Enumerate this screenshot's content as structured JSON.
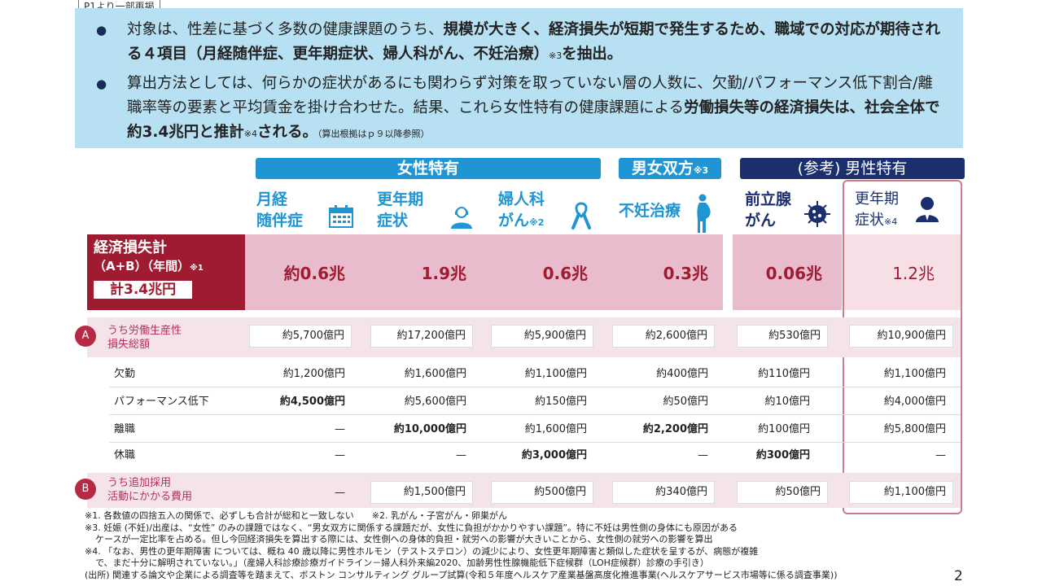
{
  "tag": "P1より一部再掲",
  "summary": {
    "b1_pre": "対象は、性差に基づく多数の健康課題のうち、",
    "b1_bold1": "規模が大きく、経済損失が短期で発生するため、",
    "b1_bold2": "職域での対応が期待される４項目（月経随伴症、更年期症状、婦人科がん、不妊治療）",
    "b1_sup": "※3",
    "b1_end": "を抽出。",
    "b2_pre": "算出方法としては、何らかの症状があるにも関わらず対策を取っていない層の人数に、欠勤/パフォーマンス低下割合/離職率等の要素と平均賃金を掛け合わせた。結果、これら女性特有の健康課題による",
    "b2_bold1": "労働損失等の経済損失は、社会全体で約3.4兆円と推計",
    "b2_sup": "※4",
    "b2_bold2": "される。",
    "b2_small": "（算出根拠はｐ９以降参照）",
    "bullet_glyph": "●"
  },
  "groups": {
    "women": "女性特有",
    "both": "男女双方",
    "both_sup": "※3",
    "men": "(参考) 男性特有"
  },
  "columns": [
    {
      "line1": "月経",
      "line2": "随伴症",
      "sup": "",
      "icon": "calendar-icon"
    },
    {
      "line1": "更年期",
      "line2": "症状",
      "sup": "",
      "icon": "woman-icon"
    },
    {
      "line1": "婦人科",
      "line2": "がん",
      "sup": "※2",
      "icon": "ribbon-icon"
    },
    {
      "line1": "不妊治療",
      "line2": "",
      "sup": "",
      "icon": "pregnant-icon"
    },
    {
      "line1": "前立腺",
      "line2": "がん",
      "sup": "",
      "icon": "virus-icon"
    },
    {
      "line1": "更年期",
      "line2": "症状",
      "sup": "※4",
      "icon": "man-icon"
    }
  ],
  "economic": {
    "label1": "経済損失計",
    "label2": "（A+B）（年間）",
    "label2_sup": "※1",
    "total": "計3.4兆円",
    "values": [
      "約0.6兆",
      "1.9兆",
      "0.6兆",
      "0.3兆",
      "0.06兆",
      "1.2兆"
    ]
  },
  "rowA": {
    "badge": "A",
    "label1": "うち労働生産性",
    "label2": "損失総額",
    "values": [
      "約5,700億円",
      "約17,200億円",
      "約5,900億円",
      "約2,600億円",
      "約530億円",
      "約10,900億円"
    ]
  },
  "subrows": [
    {
      "label": "欠勤",
      "values": [
        "約1,200億円",
        "約1,600億円",
        "約1,100億円",
        "約400億円",
        "約110億円",
        "約1,100億円"
      ],
      "bold": [
        false,
        false,
        false,
        false,
        false,
        false
      ]
    },
    {
      "label": "パフォーマンス低下",
      "values": [
        "約4,500億円",
        "約5,600億円",
        "約150億円",
        "約50億円",
        "約10億円",
        "約4,000億円"
      ],
      "bold": [
        true,
        false,
        false,
        false,
        false,
        false
      ]
    },
    {
      "label": "離職",
      "values": [
        "—",
        "約10,000億円",
        "約1,600億円",
        "約2,200億円",
        "約100億円",
        "約5,800億円"
      ],
      "bold": [
        false,
        true,
        false,
        true,
        false,
        false
      ]
    },
    {
      "label": "休職",
      "values": [
        "—",
        "—",
        "約3,000億円",
        "—",
        "約300億円",
        "—"
      ],
      "bold": [
        false,
        false,
        true,
        false,
        true,
        false
      ]
    }
  ],
  "rowB": {
    "badge": "B",
    "label1": "うち追加採用",
    "label2": "活動にかかる費用",
    "values": [
      "—",
      "約1,500億円",
      "約500億円",
      "約340億円",
      "約50億円",
      "約1,100億円"
    ]
  },
  "notes": {
    "n1": "※1. 各数値の四捨五入の関係で、必ずしも合計が総和と一致しない　　※2. 乳がん・子宮がん・卵巣がん",
    "n3a": "※3. 妊娠 (不妊)/出産は、“女性” のみの課題ではなく、“男女双方に関係する課題だが、女性に負担がかかりやすい課題”。特に不妊は男性側の身体にも原因がある",
    "n3b": "ケースが一定比率を占める。但し今回経済損失を算出する際には、女性側への身体的負担・就労への影響が大きいことから、女性側の就労への影響を算出",
    "n4a": "※4. 「なお、男性の更年期障害 については、概ね 40 歳以降に男性ホルモン（テストステロン）の減少により、女性更年期障害と類似した症状を呈するが、病態が複雑",
    "n4b": "で、まだ十分に解明されていない。」（産婦人科診療診療ガイドライン－婦人科外来編2020、加齢男性性腺機能低下症候群（LOH症候群）診療の手引き）",
    "source": "(出所) 関連する論文や企業による調査等を踏まえて、ボストン コンサルティング グループ試算(令和５年度ヘルスケア産業基盤高度化推進事業(ヘルスケアサービス市場等に係る調査事業))"
  },
  "page_number": "2"
}
